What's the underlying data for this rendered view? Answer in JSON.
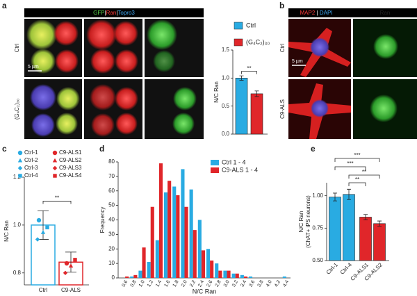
{
  "panel_labels": [
    "a",
    "b",
    "c",
    "d",
    "e"
  ],
  "images": {
    "a": {
      "header": [
        {
          "text": "GFP",
          "color": "#5bd34a"
        },
        {
          "text": "|",
          "color": "#ffffff"
        },
        {
          "text": "Ran",
          "color": "#ff3b3b"
        },
        {
          "text": "|",
          "color": "#ffffff"
        },
        {
          "text": "Topro3",
          "color": "#3fa9f5"
        }
      ],
      "rows": [
        "Ctrl",
        "(G₄C₂)₃₀"
      ],
      "scale_bar": "5 µm"
    },
    "b": {
      "header": [
        {
          "text": "MAP2",
          "color": "#ff3b3b"
        },
        {
          "text": "|",
          "color": "#ffffff"
        },
        {
          "text": "DAPI",
          "color": "#3fa9f5"
        },
        {
          "text": "Ran",
          "color": "#5bd34a"
        }
      ],
      "rows": [
        "Ctrl",
        "C9-ALS"
      ],
      "scale_bar": "5 µm"
    }
  },
  "chart_data": [
    {
      "type": "bar",
      "ylabel": "N/C Ran",
      "series": [
        {
          "name": "Ctrl",
          "color": "#29abe2",
          "values": [
            1.0
          ],
          "errors": [
            0.04
          ]
        },
        {
          "name": "(G₄C₂)₃₀",
          "color": "#e0262a",
          "values": [
            0.72
          ],
          "errors": [
            0.05
          ]
        }
      ],
      "ylim": [
        0,
        1.5
      ],
      "yticks": [
        {
          "value": 0,
          "label": "0.0"
        },
        {
          "value": 0.5,
          "label": "0.5"
        },
        {
          "value": 1,
          "label": "1.0"
        },
        {
          "value": 1.5,
          "label": "1.5"
        }
      ],
      "annotations": [
        "**"
      ]
    },
    {
      "type": "bar",
      "ylabel": "N/C Ran",
      "categories": [
        "Ctrl",
        "C9-ALS"
      ],
      "values": [
        1.0,
        0.845
      ],
      "errors": [
        0.06,
        0.042
      ],
      "colors": [
        "#29abe2",
        "#e0262a"
      ],
      "series": [
        {
          "name": "Ctrl-1",
          "color": "#29abe2",
          "marker": "circle",
          "values": [
            1.02,
            null
          ]
        },
        {
          "name": "Ctrl-2",
          "color": "#29abe2",
          "marker": "triangle",
          "values": [
            0.97,
            null
          ]
        },
        {
          "name": "Ctrl-3",
          "color": "#29abe2",
          "marker": "diamond",
          "values": [
            0.94,
            null
          ]
        },
        {
          "name": "Ctrl-4",
          "color": "#29abe2",
          "marker": "square",
          "values": [
            0.99,
            null
          ]
        },
        {
          "name": "C9-ALS1",
          "color": "#e0262a",
          "marker": "circle",
          "values": [
            null,
            0.84
          ]
        },
        {
          "name": "C9-ALS2",
          "color": "#e0262a",
          "marker": "triangle",
          "values": [
            null,
            0.83
          ]
        },
        {
          "name": "C9-ALS3",
          "color": "#e0262a",
          "marker": "diamond",
          "values": [
            null,
            0.8
          ]
        },
        {
          "name": "C9-ALS4",
          "color": "#e0262a",
          "marker": "square",
          "values": [
            null,
            0.855
          ]
        }
      ],
      "ylim": [
        0.75,
        1.2
      ],
      "yticks": [
        0.8,
        {
          "value": 1,
          "label": "1.0"
        },
        1.2
      ],
      "annotations": [
        "**"
      ]
    },
    {
      "type": "bar",
      "xlabel": "N/C Ran",
      "ylabel": "Frequency",
      "categories": [
        "0.6",
        "0.8",
        "1.0",
        "1.2",
        "1.4",
        "1.6",
        "1.8",
        "2.0",
        "2.2",
        "2.4",
        "2.6",
        "2.8",
        "3.0",
        "3.2",
        "3.4",
        "3.6",
        "3.8",
        "4.0",
        "4.2",
        "4.4"
      ],
      "series": [
        {
          "name": "Ctrl 1 - 4",
          "color": "#29abe2",
          "values": [
            0,
            1,
            5,
            11,
            26,
            59,
            63,
            75,
            61,
            40,
            20,
            10,
            5,
            3,
            2,
            1,
            0,
            0,
            0,
            1
          ]
        },
        {
          "name": "C9-ALS 1 - 4",
          "color": "#e0262a",
          "values": [
            1,
            2,
            21,
            49,
            79,
            67,
            57,
            49,
            33,
            19,
            12,
            5,
            5,
            3,
            1,
            0,
            0,
            0,
            0,
            0
          ]
        }
      ],
      "ylim": [
        0,
        80
      ],
      "yticks": [
        0,
        10,
        20,
        30,
        40,
        50,
        60,
        70,
        80
      ]
    },
    {
      "type": "bar",
      "ylabel": [
        "N/C Ran",
        "(ChAT+ iPS neurons)"
      ],
      "categories": [
        "Ctrl-1",
        "Ctrl-4",
        "C9-ALS1",
        "C9-ALS2"
      ],
      "values": [
        0.99,
        1.01,
        0.835,
        0.785
      ],
      "errors": [
        0.03,
        0.04,
        0.02,
        0.02
      ],
      "colors": [
        "#29abe2",
        "#29abe2",
        "#e0262a",
        "#e0262a"
      ],
      "ylim": [
        0.5,
        1.1
      ],
      "yticks": [
        {
          "value": 0.5,
          "label": "0.50"
        },
        {
          "value": 0.75,
          "label": "0.75"
        },
        {
          "value": 1,
          "label": "1.00"
        }
      ],
      "annotations": [
        "***",
        "***",
        "**",
        "**"
      ]
    }
  ]
}
